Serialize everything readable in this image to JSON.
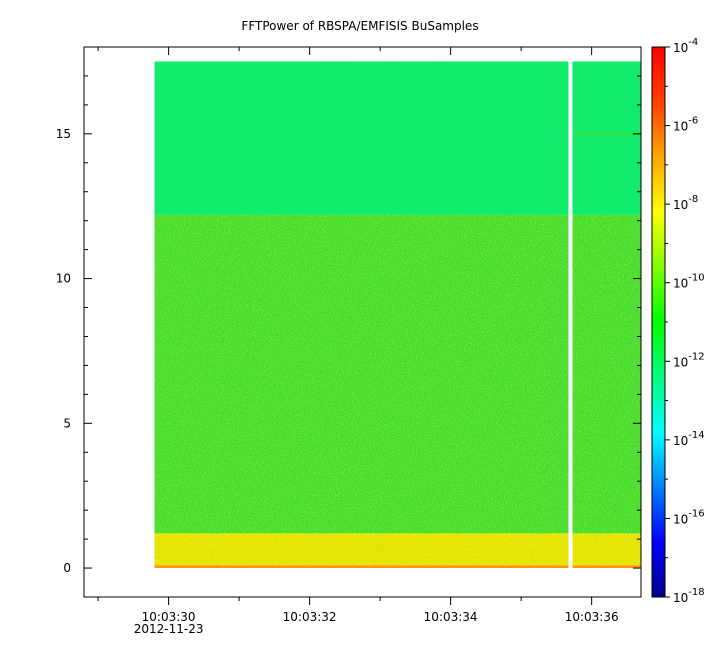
{
  "chart_data": {
    "type": "heatmap",
    "title": "FFTPower of RBSPA/EMFISIS  BuSamples",
    "xlabel": "",
    "ylabel": "",
    "x_axis": {
      "kind": "time",
      "range": [
        "10:03:28.8",
        "10:03:36.7"
      ],
      "tick_labels": [
        "10:03:30",
        "10:03:32",
        "10:03:34",
        "10:03:36"
      ],
      "date_label": "2012-11-23"
    },
    "ylim": [
      -1,
      18
    ],
    "y_ticks": [
      0,
      5,
      10,
      15
    ],
    "colorbar": {
      "scale": "log",
      "range": [
        1e-18,
        0.0001
      ],
      "tick_exponents": [
        -4,
        -6,
        -8,
        -10,
        -12,
        -14,
        -16,
        -18
      ],
      "tick_base": "10",
      "colormap": [
        "#00008b",
        "#0000ff",
        "#0080ff",
        "#00ffff",
        "#00ff80",
        "#00ff00",
        "#80ff00",
        "#ffff00",
        "#ffa500",
        "#ff4000",
        "#ff0000"
      ]
    },
    "data_extent": {
      "x_start": "10:03:29.8",
      "x_end": "10:03:36.7",
      "gap_at": "10:03:35.7",
      "y_min": 0,
      "y_max": 17.5
    },
    "bands": [
      {
        "y_from": 0,
        "y_to": 0.1,
        "log10_power": -6.5,
        "color": "#ff8c00"
      },
      {
        "y_from": 0.1,
        "y_to": 1.2,
        "log10_power": -8.5,
        "color": "#f2e600"
      },
      {
        "y_from": 1.2,
        "y_to": 12.2,
        "log10_power": -10.0,
        "color": "#3fdc2a"
      },
      {
        "y_from": 12.2,
        "y_to": 17.5,
        "log10_power": -11.2,
        "color": "#12ec6a"
      }
    ]
  }
}
